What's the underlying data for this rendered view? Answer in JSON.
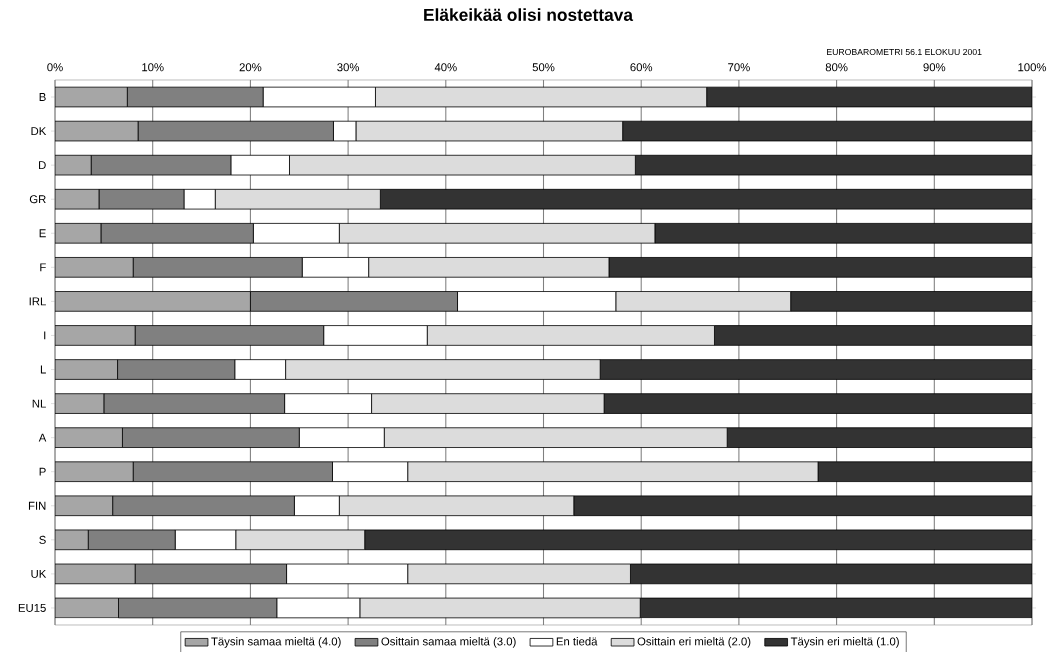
{
  "chart_data": {
    "type": "bar",
    "orientation": "horizontal",
    "stacked": true,
    "title": "Eläkeikää olisi nostettava",
    "annotations": [
      "EUROBAROMETRI 56.1 ELOKUU 2001"
    ],
    "categories": [
      "B",
      "DK",
      "D",
      "GR",
      "E",
      "F",
      "IRL",
      "I",
      "L",
      "NL",
      "A",
      "P",
      "FIN",
      "S",
      "UK",
      "EU15"
    ],
    "series": [
      {
        "name": "Täysin samaa mieltä (4.0)",
        "color": "#a6a6a6",
        "values": [
          7.4,
          8.5,
          3.7,
          4.5,
          4.7,
          8.0,
          20.0,
          8.2,
          6.4,
          5.0,
          6.9,
          8.0,
          5.9,
          3.4,
          8.2,
          6.5
        ]
      },
      {
        "name": "Osittain samaa mieltä (3.0)",
        "color": "#808080",
        "values": [
          13.9,
          20.0,
          14.3,
          8.7,
          15.6,
          17.3,
          21.2,
          19.3,
          12.0,
          18.5,
          18.1,
          20.4,
          18.6,
          8.9,
          15.5,
          16.2
        ]
      },
      {
        "name": "En tiedä",
        "color": "#ffffff",
        "values": [
          11.5,
          2.3,
          6.0,
          3.2,
          8.8,
          6.8,
          16.2,
          10.6,
          5.2,
          8.9,
          8.7,
          7.7,
          4.6,
          6.2,
          12.4,
          8.5
        ]
      },
      {
        "name": "Osittain eri mieltä (2.0)",
        "color": "#dcdcdc",
        "values": [
          33.9,
          27.3,
          35.4,
          16.9,
          32.3,
          24.6,
          17.9,
          29.4,
          32.2,
          23.8,
          35.1,
          42.0,
          24.0,
          13.2,
          22.8,
          28.7
        ]
      },
      {
        "name": "Täysin eri mieltä (1.0)",
        "color": "#333333",
        "values": [
          33.3,
          41.9,
          40.6,
          66.7,
          38.6,
          43.3,
          24.7,
          32.5,
          44.2,
          43.8,
          31.2,
          21.9,
          46.9,
          68.3,
          41.1,
          40.1
        ]
      }
    ],
    "xlim": [
      0,
      100
    ],
    "xticks": [
      {
        "value": 0,
        "label": "0%"
      },
      {
        "value": 10,
        "label": "10%"
      },
      {
        "value": 20,
        "label": "20%"
      },
      {
        "value": 30,
        "label": "30%"
      },
      {
        "value": 40,
        "label": "40%"
      },
      {
        "value": 50,
        "label": "50%"
      },
      {
        "value": 60,
        "label": "60%"
      },
      {
        "value": 70,
        "label": "70%"
      },
      {
        "value": 80,
        "label": "80%"
      },
      {
        "value": 90,
        "label": "90%"
      },
      {
        "value": 100,
        "label": "100%"
      }
    ],
    "grid": "x",
    "legend": "bottom"
  }
}
